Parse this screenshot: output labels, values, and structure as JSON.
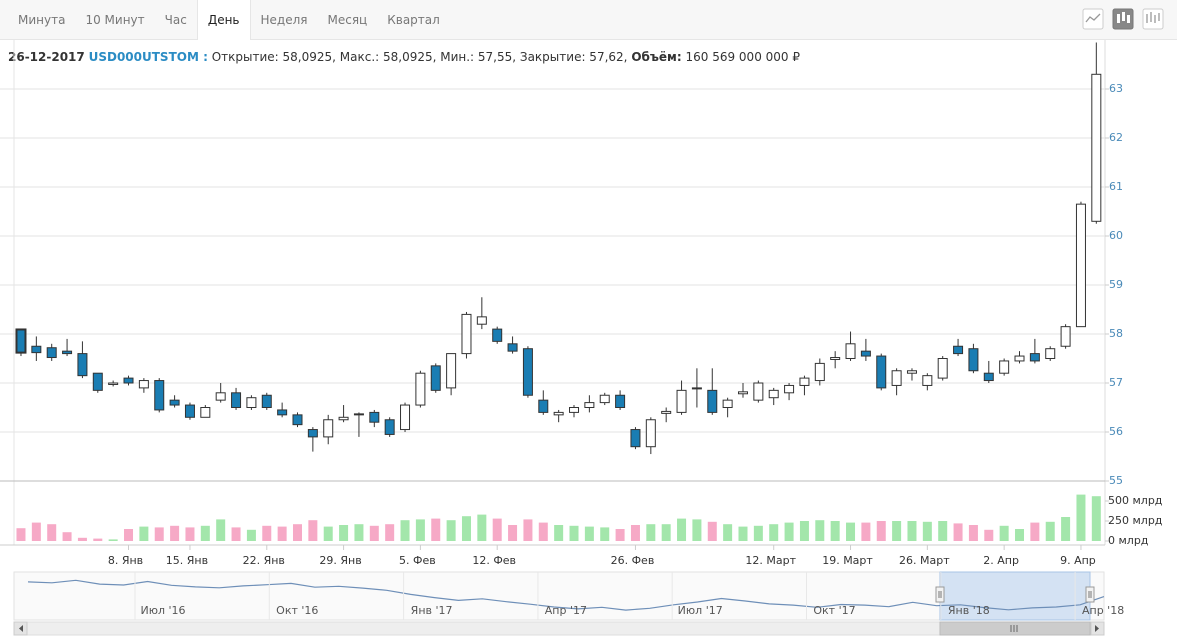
{
  "toolbar": {
    "tabs": [
      "Минута",
      "10 Минут",
      "Час",
      "День",
      "Неделя",
      "Месяц",
      "Квартал"
    ],
    "active_tab": 3
  },
  "info": {
    "date": "26-12-2017",
    "ticker": "USD000UTSTOM :",
    "prices": "Открытие: 58,0925, Макс.: 58,0925, Мин.: 57,55, Закрытие: 57,62,",
    "volume_label": "Объём:",
    "volume": "160 569 000 000 ₽"
  },
  "chart_data": [
    {
      "type": "candlestick",
      "categories": [
        null,
        null,
        null,
        null,
        null,
        null,
        null,
        "8. Янв",
        null,
        null,
        null,
        "15. Янв",
        null,
        null,
        null,
        null,
        "22. Янв",
        null,
        null,
        null,
        null,
        "29. Янв",
        null,
        null,
        null,
        null,
        "5. Фев",
        null,
        null,
        null,
        null,
        "12. Фев",
        null,
        null,
        null,
        null,
        null,
        null,
        null,
        null,
        "26. Фев",
        null,
        null,
        null,
        null,
        null,
        null,
        null,
        null,
        "12. Март",
        null,
        null,
        null,
        null,
        "19. Март",
        null,
        null,
        null,
        null,
        "26. Март",
        null,
        null,
        null,
        null,
        "2. Апр",
        null,
        null,
        null,
        null,
        "9. Апр",
        null
      ],
      "open": [
        58.0925,
        57.75,
        57.72,
        57.65,
        57.6,
        57.2,
        56.97,
        57.1,
        56.9,
        57.05,
        56.65,
        56.55,
        56.3,
        56.65,
        56.8,
        56.5,
        56.75,
        56.45,
        56.35,
        56.05,
        55.9,
        56.25,
        56.35,
        56.4,
        56.25,
        56.05,
        56.55,
        57.35,
        56.9,
        57.6,
        58.2,
        58.1,
        57.8,
        57.7,
        56.65,
        56.35,
        56.4,
        56.5,
        56.6,
        56.75,
        56.05,
        55.7,
        56.38,
        56.4,
        56.88,
        56.85,
        56.5,
        56.78,
        56.65,
        56.7,
        56.8,
        56.95,
        57.05,
        57.48,
        57.5,
        57.65,
        57.55,
        56.95,
        57.2,
        56.95,
        57.1,
        57.75,
        57.7,
        57.2,
        57.2,
        57.45,
        57.6,
        57.5,
        57.75,
        58.15,
        60.3
      ],
      "high": [
        58.0925,
        57.95,
        57.8,
        57.9,
        57.85,
        57.2,
        57.05,
        57.15,
        57.1,
        57.1,
        56.75,
        56.6,
        56.55,
        57.0,
        56.9,
        56.75,
        56.8,
        56.6,
        56.4,
        56.1,
        56.35,
        56.55,
        56.4,
        56.45,
        56.3,
        56.6,
        57.25,
        57.4,
        57.6,
        58.45,
        58.75,
        58.15,
        57.95,
        57.75,
        56.85,
        56.45,
        56.55,
        56.75,
        56.8,
        56.85,
        56.1,
        56.3,
        56.5,
        57.05,
        57.3,
        57.3,
        56.7,
        57.0,
        57.05,
        56.9,
        57.0,
        57.15,
        57.5,
        57.65,
        58.05,
        57.9,
        57.6,
        57.3,
        57.3,
        57.2,
        57.55,
        57.9,
        57.8,
        57.45,
        57.5,
        57.65,
        57.9,
        57.75,
        58.2,
        60.7,
        63.95
      ],
      "low": [
        57.55,
        57.45,
        57.45,
        57.55,
        57.1,
        56.8,
        56.93,
        56.95,
        56.8,
        56.4,
        56.5,
        56.25,
        56.3,
        56.6,
        56.45,
        56.45,
        56.45,
        56.3,
        56.1,
        55.6,
        55.75,
        56.2,
        55.9,
        56.1,
        55.9,
        56.0,
        56.5,
        56.8,
        56.75,
        57.5,
        58.1,
        57.8,
        57.6,
        56.7,
        56.35,
        56.2,
        56.3,
        56.4,
        56.55,
        56.45,
        55.65,
        55.55,
        56.2,
        56.35,
        56.5,
        56.35,
        56.3,
        56.7,
        56.6,
        56.55,
        56.65,
        56.75,
        56.95,
        57.3,
        57.45,
        57.45,
        56.85,
        56.75,
        57.05,
        56.85,
        57.05,
        57.55,
        57.2,
        57.0,
        57.15,
        57.4,
        57.4,
        57.45,
        57.7,
        58.15,
        60.25
      ],
      "close": [
        57.62,
        57.62,
        57.52,
        57.6,
        57.15,
        56.85,
        57.0,
        57.0,
        57.05,
        56.45,
        56.55,
        56.3,
        56.5,
        56.8,
        56.5,
        56.7,
        56.5,
        56.35,
        56.15,
        55.9,
        56.25,
        56.3,
        56.37,
        56.2,
        55.95,
        56.55,
        57.2,
        56.85,
        57.6,
        58.4,
        58.35,
        57.85,
        57.65,
        56.75,
        56.4,
        56.4,
        56.5,
        56.6,
        56.75,
        56.5,
        55.7,
        56.25,
        56.42,
        56.85,
        56.9,
        56.4,
        56.65,
        56.82,
        57.0,
        56.85,
        56.95,
        57.1,
        57.4,
        57.52,
        57.8,
        57.55,
        56.9,
        57.25,
        57.25,
        57.15,
        57.5,
        57.6,
        57.25,
        57.05,
        57.45,
        57.55,
        57.45,
        57.7,
        58.15,
        60.65,
        63.3
      ],
      "up_color": "#ffffff",
      "down_color": "#1a7db3",
      "ylim": [
        55,
        64
      ],
      "yticks": [
        55,
        56,
        57,
        58,
        59,
        60,
        61,
        62,
        63
      ],
      "grid": true
    },
    {
      "type": "bar",
      "values": [
        160,
        230,
        210,
        110,
        40,
        30,
        20,
        150,
        180,
        170,
        190,
        170,
        190,
        270,
        170,
        140,
        190,
        180,
        210,
        260,
        180,
        200,
        210,
        190,
        210,
        260,
        270,
        280,
        260,
        310,
        330,
        280,
        200,
        270,
        230,
        200,
        190,
        180,
        170,
        150,
        200,
        210,
        210,
        280,
        270,
        240,
        210,
        180,
        190,
        210,
        230,
        250,
        260,
        250,
        230,
        230,
        250,
        250,
        250,
        240,
        250,
        220,
        200,
        140,
        190,
        150,
        230,
        240,
        300,
        580,
        560
      ],
      "up_color": "#a3e6ab",
      "down_color": "#f6a9c6",
      "ylim": [
        0,
        750
      ],
      "yticks": [
        {
          "value": 0,
          "label": "0 млрд"
        },
        {
          "value": 250,
          "label": "250 млрд"
        },
        {
          "value": 500,
          "label": "500 млрд"
        }
      ]
    },
    {
      "type": "line",
      "xticks": [
        "Июл '16",
        "Окт '16",
        "Янв '17",
        "Апр '17",
        "Июл '17",
        "Окт '17",
        "Янв '18",
        "Апр '18"
      ],
      "values": [
        65.5,
        65.2,
        66,
        64.8,
        64.5,
        65.6,
        64.4,
        63.9,
        63.6,
        64.2,
        64.6,
        65,
        63.8,
        64.1,
        63.5,
        62.8,
        61.5,
        60.5,
        59.6,
        60.1,
        59.2,
        58.4,
        57.5,
        56.9,
        57.4,
        56.5,
        57.1,
        58.2,
        59.1,
        60.2,
        59.4,
        58.5,
        58.1,
        57.4,
        58.3,
        58.1,
        57.6,
        59,
        57.9,
        58.2,
        57.3,
        56.6,
        57.2,
        57.5,
        58.2,
        60.8
      ],
      "color": "#6e8fb8",
      "ylim": [
        54,
        68
      ]
    }
  ]
}
